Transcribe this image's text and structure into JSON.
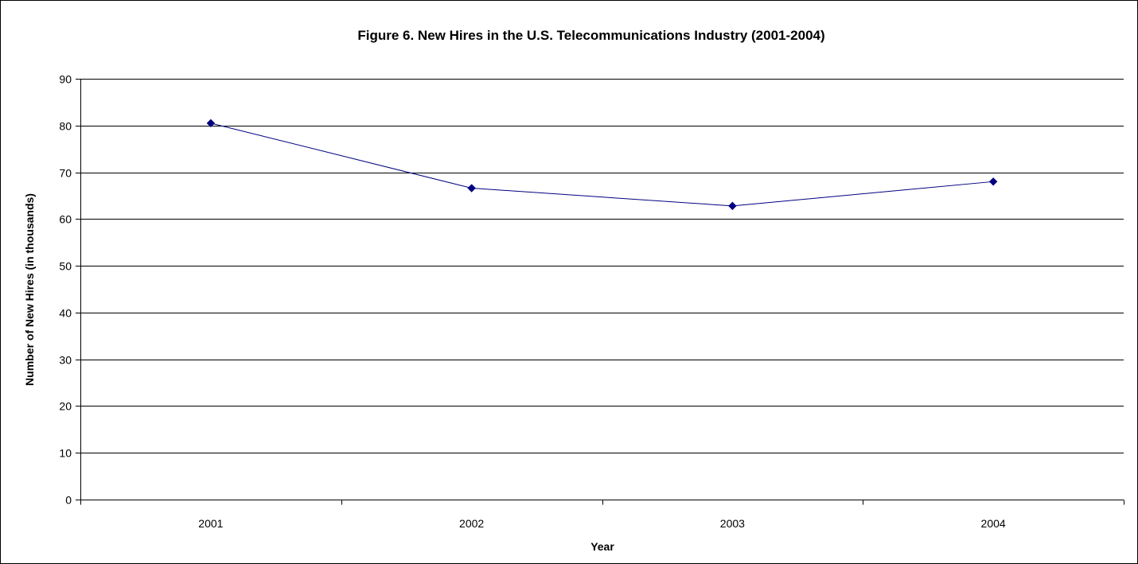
{
  "chart_data": {
    "type": "line",
    "title": "Figure 6. New Hires in the U.S. Telecommunications Industry (2001-2004)",
    "xlabel": "Year",
    "ylabel": "Number of New Hires (in thousands)",
    "categories": [
      "2001",
      "2002",
      "2003",
      "2004"
    ],
    "series": [
      {
        "values": [
          80.5,
          66.6,
          62.8,
          68.0
        ]
      }
    ],
    "ylim": [
      0,
      90
    ],
    "yticks": [
      "0",
      "10",
      "20",
      "30",
      "40",
      "50",
      "60",
      "70",
      "80",
      "90"
    ],
    "grid": "horizontal",
    "legend": "none",
    "colors": {
      "line": "#000080",
      "marker": "#000080",
      "grid": "#000000"
    }
  }
}
